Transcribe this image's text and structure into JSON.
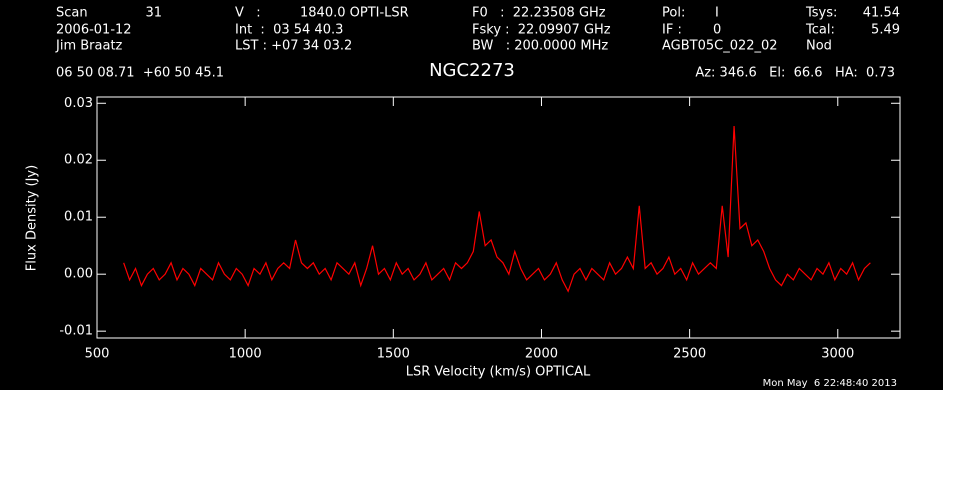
{
  "header": {
    "scan_label": "Scan",
    "scan": "31",
    "date": "2006-01-12",
    "observer": "Jim Braatz",
    "v_label": "V   :",
    "v": "1840.0 OPTI-LSR",
    "int": "Int  :  03 54 40.3",
    "lst": "LST : +07 34 03.2",
    "f0": "F0   :  22.23508 GHz",
    "fsky": "Fsky :  22.09907 GHz",
    "bw": "BW   : 200.0000 MHz",
    "pol_label": "Pol:",
    "pol": "I",
    "if_label": "IF :",
    "if": "0",
    "project": "AGBT05C_022_02",
    "tsys_label": "Tsys:",
    "tsys": "41.54",
    "tcal_label": "Tcal:",
    "tcal": "5.49",
    "proc": "Nod",
    "coords": "06 50 08.71  +60 50 45.1",
    "azel": "Az: 346.6   El:  66.6   HA:  0.73",
    "timestamp": "Mon May  6 22:48:40 2013"
  },
  "chart_data": {
    "type": "line",
    "title": "NGC2273",
    "x_label": "LSR Velocity (km/s) OPTICAL",
    "y_label": "Flux Density (Jy)",
    "xlim": [
      500,
      3210
    ],
    "ylim": [
      -0.0112,
      0.0311
    ],
    "xticks": [
      500,
      1000,
      1500,
      2000,
      2500,
      3000
    ],
    "yticks": [
      -0.01,
      {
        "value": 0,
        "label": "0.00"
      },
      0.01,
      0.02,
      0.03
    ],
    "grid": false,
    "x": [
      590,
      610,
      630,
      650,
      670,
      690,
      710,
      730,
      750,
      770,
      790,
      810,
      830,
      850,
      870,
      890,
      910,
      930,
      950,
      970,
      990,
      1010,
      1030,
      1050,
      1070,
      1090,
      1110,
      1130,
      1150,
      1170,
      1190,
      1210,
      1230,
      1250,
      1270,
      1290,
      1310,
      1330,
      1350,
      1370,
      1390,
      1410,
      1430,
      1450,
      1470,
      1490,
      1510,
      1530,
      1550,
      1570,
      1590,
      1610,
      1630,
      1650,
      1670,
      1690,
      1710,
      1730,
      1750,
      1770,
      1790,
      1810,
      1830,
      1850,
      1870,
      1890,
      1910,
      1930,
      1950,
      1970,
      1990,
      2010,
      2030,
      2050,
      2070,
      2090,
      2110,
      2130,
      2150,
      2170,
      2190,
      2210,
      2230,
      2250,
      2270,
      2290,
      2310,
      2330,
      2350,
      2370,
      2390,
      2410,
      2430,
      2450,
      2470,
      2490,
      2510,
      2530,
      2550,
      2570,
      2590,
      2610,
      2630,
      2650,
      2670,
      2690,
      2710,
      2730,
      2750,
      2770,
      2790,
      2810,
      2830,
      2850,
      2870,
      2890,
      2910,
      2930,
      2950,
      2970,
      2990,
      3010,
      3030,
      3050,
      3070,
      3090,
      3110
    ],
    "series": [
      {
        "color": "#ff0000",
        "values": [
          0.002,
          -0.001,
          0.001,
          -0.002,
          0.0,
          0.001,
          -0.001,
          0.0,
          0.002,
          -0.001,
          0.001,
          0.0,
          -0.002,
          0.001,
          0.0,
          -0.001,
          0.002,
          0.0,
          -0.001,
          0.001,
          0.0,
          -0.002,
          0.001,
          0.0,
          0.002,
          -0.001,
          0.001,
          0.002,
          0.001,
          0.006,
          0.002,
          0.001,
          0.002,
          0.0,
          0.001,
          -0.001,
          0.002,
          0.001,
          0.0,
          0.002,
          -0.002,
          0.001,
          0.005,
          0.0,
          0.001,
          -0.001,
          0.002,
          0.0,
          0.001,
          -0.001,
          0.0,
          0.002,
          -0.001,
          0.0,
          0.001,
          -0.001,
          0.002,
          0.001,
          0.002,
          0.004,
          0.011,
          0.005,
          0.006,
          0.003,
          0.002,
          0.0,
          0.004,
          0.001,
          -0.001,
          0.0,
          0.001,
          -0.001,
          0.0,
          0.002,
          -0.001,
          -0.003,
          0.0,
          0.001,
          -0.001,
          0.001,
          0.0,
          -0.001,
          0.002,
          0.0,
          0.001,
          0.003,
          0.001,
          0.012,
          0.001,
          0.002,
          0.0,
          0.001,
          0.003,
          0.0,
          0.001,
          -0.001,
          0.002,
          0.0,
          0.001,
          0.002,
          0.001,
          0.012,
          0.003,
          0.026,
          0.008,
          0.009,
          0.005,
          0.006,
          0.004,
          0.001,
          -0.001,
          -0.002,
          0.0,
          -0.001,
          0.001,
          0.0,
          -0.001,
          0.001,
          0.0,
          0.002,
          -0.001,
          0.001,
          0.0,
          0.002,
          -0.001,
          0.001,
          0.002
        ]
      }
    ]
  }
}
